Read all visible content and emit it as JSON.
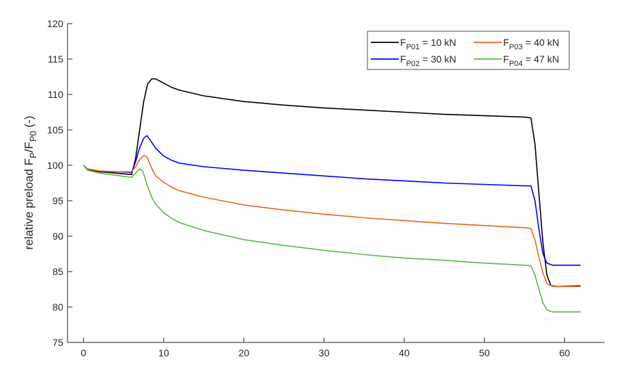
{
  "chart_data": {
    "type": "line",
    "title": "",
    "xlabel": "",
    "ylabel": "relative preload F_P/F_P0 (-)",
    "ylabel_parts": {
      "main": "relative preload F",
      "sub1": "P",
      "slash": "/F",
      "sub2": "P0",
      "tail": " (-)"
    },
    "xlim": [
      -2,
      65
    ],
    "ylim": [
      75,
      120
    ],
    "xticks": [
      0,
      10,
      20,
      30,
      40,
      50,
      60
    ],
    "yticks": [
      75,
      80,
      85,
      90,
      95,
      100,
      105,
      110,
      115,
      120
    ],
    "grid": false,
    "legend_placement": "top-right",
    "series": [
      {
        "name": "F_P01 = 10 kN",
        "label_main": "F",
        "label_sub": "P01",
        "label_tail": " = 10 kN",
        "color": "#000000",
        "points": [
          [
            0,
            100
          ],
          [
            0.5,
            99.4
          ],
          [
            2,
            99.1
          ],
          [
            4,
            98.9
          ],
          [
            6,
            98.7
          ],
          [
            6.5,
            101
          ],
          [
            7,
            105
          ],
          [
            7.5,
            109
          ],
          [
            8,
            111.5
          ],
          [
            8.5,
            112.2
          ],
          [
            9,
            112.2
          ],
          [
            10,
            111.6
          ],
          [
            11,
            111
          ],
          [
            12,
            110.6
          ],
          [
            15,
            109.8
          ],
          [
            20,
            109
          ],
          [
            25,
            108.5
          ],
          [
            30,
            108.1
          ],
          [
            35,
            107.8
          ],
          [
            40,
            107.5
          ],
          [
            45,
            107.2
          ],
          [
            50,
            107
          ],
          [
            55,
            106.8
          ],
          [
            55.8,
            106.7
          ],
          [
            56.3,
            103
          ],
          [
            56.8,
            96
          ],
          [
            57.3,
            89
          ],
          [
            57.8,
            84.5
          ],
          [
            58.3,
            83
          ],
          [
            59,
            82.9
          ],
          [
            62,
            83
          ]
        ]
      },
      {
        "name": "F_P02 = 30 kN",
        "label_main": "F",
        "label_sub": "P02",
        "label_tail": " = 30 kN",
        "color": "#0000ff",
        "points": [
          [
            0,
            100
          ],
          [
            0.5,
            99.5
          ],
          [
            2,
            99.2
          ],
          [
            4,
            99.1
          ],
          [
            6,
            99
          ],
          [
            6.5,
            100.5
          ],
          [
            7,
            102.5
          ],
          [
            7.5,
            103.8
          ],
          [
            7.9,
            104.2
          ],
          [
            8.3,
            103.6
          ],
          [
            9,
            102.4
          ],
          [
            10,
            101.3
          ],
          [
            11,
            100.7
          ],
          [
            12,
            100.3
          ],
          [
            15,
            99.8
          ],
          [
            20,
            99.3
          ],
          [
            25,
            98.9
          ],
          [
            30,
            98.5
          ],
          [
            35,
            98.1
          ],
          [
            40,
            97.8
          ],
          [
            45,
            97.5
          ],
          [
            50,
            97.3
          ],
          [
            55,
            97.1
          ],
          [
            55.8,
            97.1
          ],
          [
            56.3,
            95
          ],
          [
            56.8,
            91
          ],
          [
            57.3,
            87.5
          ],
          [
            57.8,
            86.2
          ],
          [
            58.5,
            85.9
          ],
          [
            62,
            85.9
          ]
        ]
      },
      {
        "name": "F_P03 = 40 kN",
        "label_main": "F",
        "label_sub": "P03",
        "label_tail": " = 40 kN",
        "color": "#e8661c",
        "points": [
          [
            0,
            100
          ],
          [
            0.5,
            99.5
          ],
          [
            2,
            99.2
          ],
          [
            4,
            99.1
          ],
          [
            6,
            99.1
          ],
          [
            6.5,
            99.8
          ],
          [
            7,
            100.8
          ],
          [
            7.5,
            101.4
          ],
          [
            7.9,
            101.2
          ],
          [
            8.5,
            99.6
          ],
          [
            9,
            98.5
          ],
          [
            10,
            97.6
          ],
          [
            11,
            96.9
          ],
          [
            12,
            96.4
          ],
          [
            15,
            95.5
          ],
          [
            20,
            94.4
          ],
          [
            25,
            93.7
          ],
          [
            30,
            93.1
          ],
          [
            35,
            92.6
          ],
          [
            40,
            92.2
          ],
          [
            45,
            91.8
          ],
          [
            50,
            91.5
          ],
          [
            55,
            91.2
          ],
          [
            55.8,
            91.1
          ],
          [
            56.3,
            89.5
          ],
          [
            56.8,
            87
          ],
          [
            57.3,
            84.8
          ],
          [
            57.8,
            83.3
          ],
          [
            58.5,
            82.9
          ],
          [
            62,
            82.9
          ]
        ]
      },
      {
        "name": "F_P04 = 47 kN",
        "label_main": "F",
        "label_sub": "P04",
        "label_tail": " = 47 kN",
        "color": "#5cb84a",
        "points": [
          [
            0,
            100
          ],
          [
            0.5,
            99.3
          ],
          [
            2,
            98.9
          ],
          [
            4,
            98.6
          ],
          [
            6,
            98.3
          ],
          [
            6.5,
            98.9
          ],
          [
            7,
            99.5
          ],
          [
            7.4,
            99.2
          ],
          [
            8,
            97
          ],
          [
            8.5,
            95.5
          ],
          [
            9,
            94.5
          ],
          [
            10,
            93.3
          ],
          [
            11,
            92.5
          ],
          [
            12,
            91.9
          ],
          [
            15,
            90.8
          ],
          [
            20,
            89.5
          ],
          [
            25,
            88.7
          ],
          [
            30,
            88
          ],
          [
            35,
            87.4
          ],
          [
            40,
            86.9
          ],
          [
            45,
            86.6
          ],
          [
            50,
            86.2
          ],
          [
            55,
            85.9
          ],
          [
            55.8,
            85.8
          ],
          [
            56.3,
            84.5
          ],
          [
            56.8,
            82.5
          ],
          [
            57.3,
            80.6
          ],
          [
            57.8,
            79.6
          ],
          [
            58.5,
            79.3
          ],
          [
            62,
            79.3
          ]
        ]
      }
    ]
  }
}
